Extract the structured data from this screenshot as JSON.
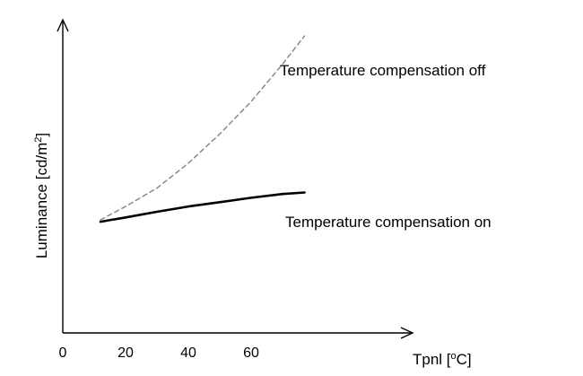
{
  "chart_data": {
    "type": "line",
    "title": "",
    "xlabel": "Tpnl [°C]",
    "ylabel": "Luminance [cd/m²]",
    "x_ticks": [
      0,
      20,
      40,
      60
    ],
    "xlim": [
      0,
      110
    ],
    "ylim": [
      0,
      100
    ],
    "y_ticks": [],
    "grid": false,
    "legend": "none",
    "series": [
      {
        "name": "Temperature compensation off",
        "style": "dashed",
        "color": "#8a8a8a",
        "x": [
          12,
          20,
          30,
          40,
          50,
          60,
          70,
          77
        ],
        "y": [
          36.3,
          40.6,
          46.5,
          54.5,
          63.9,
          74.3,
          86.3,
          95.4
        ]
      },
      {
        "name": "Temperature compensation on",
        "style": "solid",
        "color": "#000000",
        "x": [
          12,
          20,
          30,
          40,
          50,
          60,
          70,
          77
        ],
        "y": [
          35.7,
          37.1,
          38.9,
          40.6,
          42.0,
          43.4,
          44.6,
          45.1
        ]
      }
    ]
  }
}
